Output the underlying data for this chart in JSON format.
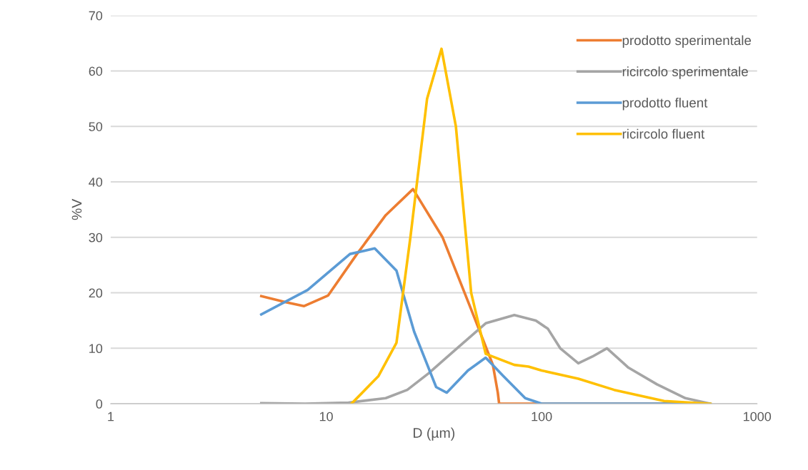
{
  "chart_data": {
    "type": "line",
    "xlabel": "D (µm)",
    "ylabel": "%V",
    "log": "x",
    "xlim": [
      1,
      1000
    ],
    "xticks": [
      1,
      10,
      100,
      1000
    ],
    "ylim": [
      0,
      70
    ],
    "yticks": [
      0,
      10,
      20,
      30,
      40,
      50,
      60,
      70
    ],
    "grid": "y",
    "legend": "top right",
    "marker": "none",
    "line_style": "solid",
    "series": [
      {
        "name": "prodotto sperimentale",
        "color": "#ed7d31",
        "x": [
          5,
          6.5,
          7.9,
          10.2,
          13.9,
          18.9,
          25.3,
          34.7,
          47.1,
          59.4,
          62.6,
          63.5,
          100,
          300,
          600
        ],
        "values": [
          19.4,
          18.3,
          17.6,
          19.5,
          27,
          34,
          38.7,
          30,
          17,
          7,
          2,
          0,
          0,
          0,
          0
        ]
      },
      {
        "name": "ricircolo sperimentale",
        "color": "#a5a5a5",
        "x": [
          5,
          8,
          12.7,
          18.9,
          23.8,
          29.9,
          40.5,
          55,
          74.7,
          94,
          107,
          122,
          148,
          172,
          201,
          253,
          343,
          465,
          607
        ],
        "values": [
          0.1,
          0,
          0.2,
          1,
          2.5,
          5.5,
          10,
          14.5,
          16,
          15,
          13.5,
          10,
          7.3,
          8.5,
          10,
          6.5,
          3.5,
          1,
          0
        ]
      },
      {
        "name": "prodotto fluent",
        "color": "#5b9bd5",
        "x": [
          5,
          8.2,
          12.9,
          16.8,
          21.2,
          25.6,
          32.4,
          36.3,
          45.5,
          55,
          66.4,
          83.9,
          100,
          300,
          600
        ],
        "values": [
          16.1,
          20.5,
          27,
          28,
          24,
          13,
          3,
          2,
          6,
          8.3,
          5,
          1,
          0,
          0,
          0
        ]
      },
      {
        "name": "ricircolo fluent",
        "color": "#ffc000",
        "x": [
          13.1,
          17.5,
          21.2,
          24.6,
          29.4,
          34.3,
          40,
          47.1,
          55,
          74.7,
          86.9,
          100,
          148,
          217,
          370,
          607
        ],
        "values": [
          0,
          5,
          11,
          30,
          55,
          64,
          50,
          20,
          9,
          7,
          6.7,
          6,
          4.5,
          2.5,
          0.5,
          0
        ]
      }
    ]
  }
}
